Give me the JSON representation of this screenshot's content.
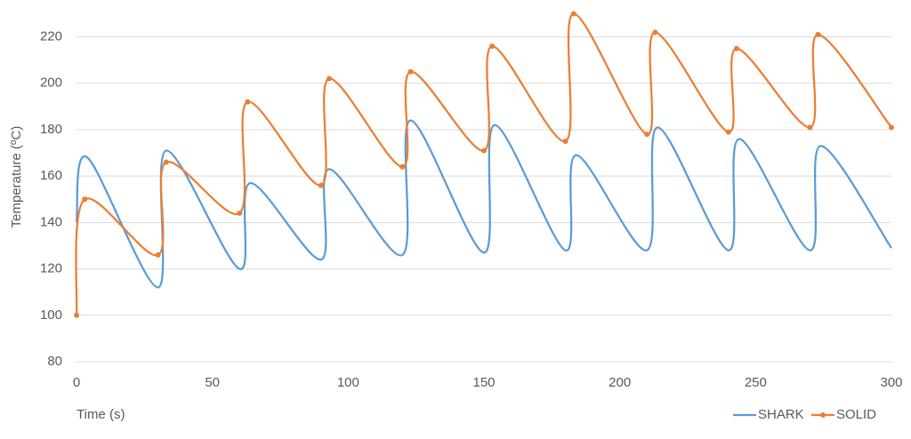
{
  "chart_data": {
    "type": "line",
    "x_label": "Time (s)",
    "y_label": "Temperature (ºC)",
    "xlim": [
      0,
      300
    ],
    "xticks": [
      0,
      50,
      100,
      150,
      200,
      250,
      300
    ],
    "ylim": [
      80,
      234
    ],
    "yticks": [
      80,
      100,
      120,
      140,
      160,
      180,
      200,
      220
    ],
    "grid": true,
    "legend": "bottom-right",
    "series": [
      {
        "name": "SHARK",
        "color": "#5b9bd5",
        "markers": false,
        "x": [
          0,
          4,
          30,
          33,
          60,
          64,
          90,
          93,
          120,
          123,
          150,
          154,
          180,
          184,
          210,
          214,
          240,
          244,
          270,
          274,
          300
        ],
        "values": [
          140,
          168,
          112,
          171,
          120,
          157,
          124,
          163,
          126,
          184,
          127,
          182,
          128,
          169,
          128,
          181,
          128,
          176,
          128,
          173,
          129
        ]
      },
      {
        "name": "SOLID",
        "color": "#ed7d31",
        "markers": true,
        "x": [
          0,
          3,
          30,
          33,
          60,
          63,
          90,
          93,
          120,
          123,
          150,
          153,
          180,
          183,
          210,
          213,
          240,
          243,
          270,
          273,
          300
        ],
        "values": [
          100,
          150,
          126,
          166,
          144,
          192,
          156,
          202,
          164,
          205,
          171,
          216,
          175,
          230,
          178,
          222,
          179,
          215,
          181,
          221,
          181
        ]
      }
    ]
  }
}
